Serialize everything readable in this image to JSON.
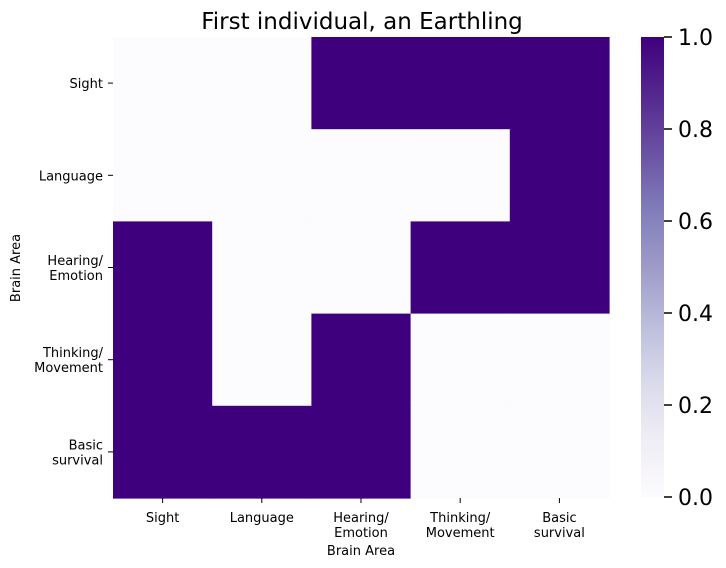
{
  "chart_data": {
    "type": "heatmap",
    "title": "First individual, an Earthling",
    "xlabel": "Brain Area",
    "ylabel": "Brain Area",
    "x_categories": [
      [
        "Sight"
      ],
      [
        "Language"
      ],
      [
        "Hearing/",
        "Emotion"
      ],
      [
        "Thinking/",
        "Movement"
      ],
      [
        "Basic",
        "survival"
      ]
    ],
    "y_categories": [
      [
        "Sight"
      ],
      [
        "Language"
      ],
      [
        "Hearing/",
        "Emotion"
      ],
      [
        "Thinking/",
        "Movement"
      ],
      [
        "Basic",
        "survival"
      ]
    ],
    "values": [
      [
        0,
        0,
        1,
        1,
        1
      ],
      [
        0,
        0,
        0,
        0,
        1
      ],
      [
        1,
        0,
        0,
        1,
        1
      ],
      [
        1,
        0,
        1,
        0,
        0
      ],
      [
        1,
        1,
        1,
        0,
        0
      ]
    ],
    "colorbar": {
      "range": [
        0.0,
        1.0
      ],
      "ticks": [
        "0.0",
        "0.2",
        "0.4",
        "0.6",
        "0.8",
        "1.0"
      ],
      "colormap": "Purples",
      "low_color": "#fcfbfd",
      "high_color": "#3f007d"
    },
    "grid": false,
    "legend": "colorbar-right"
  }
}
